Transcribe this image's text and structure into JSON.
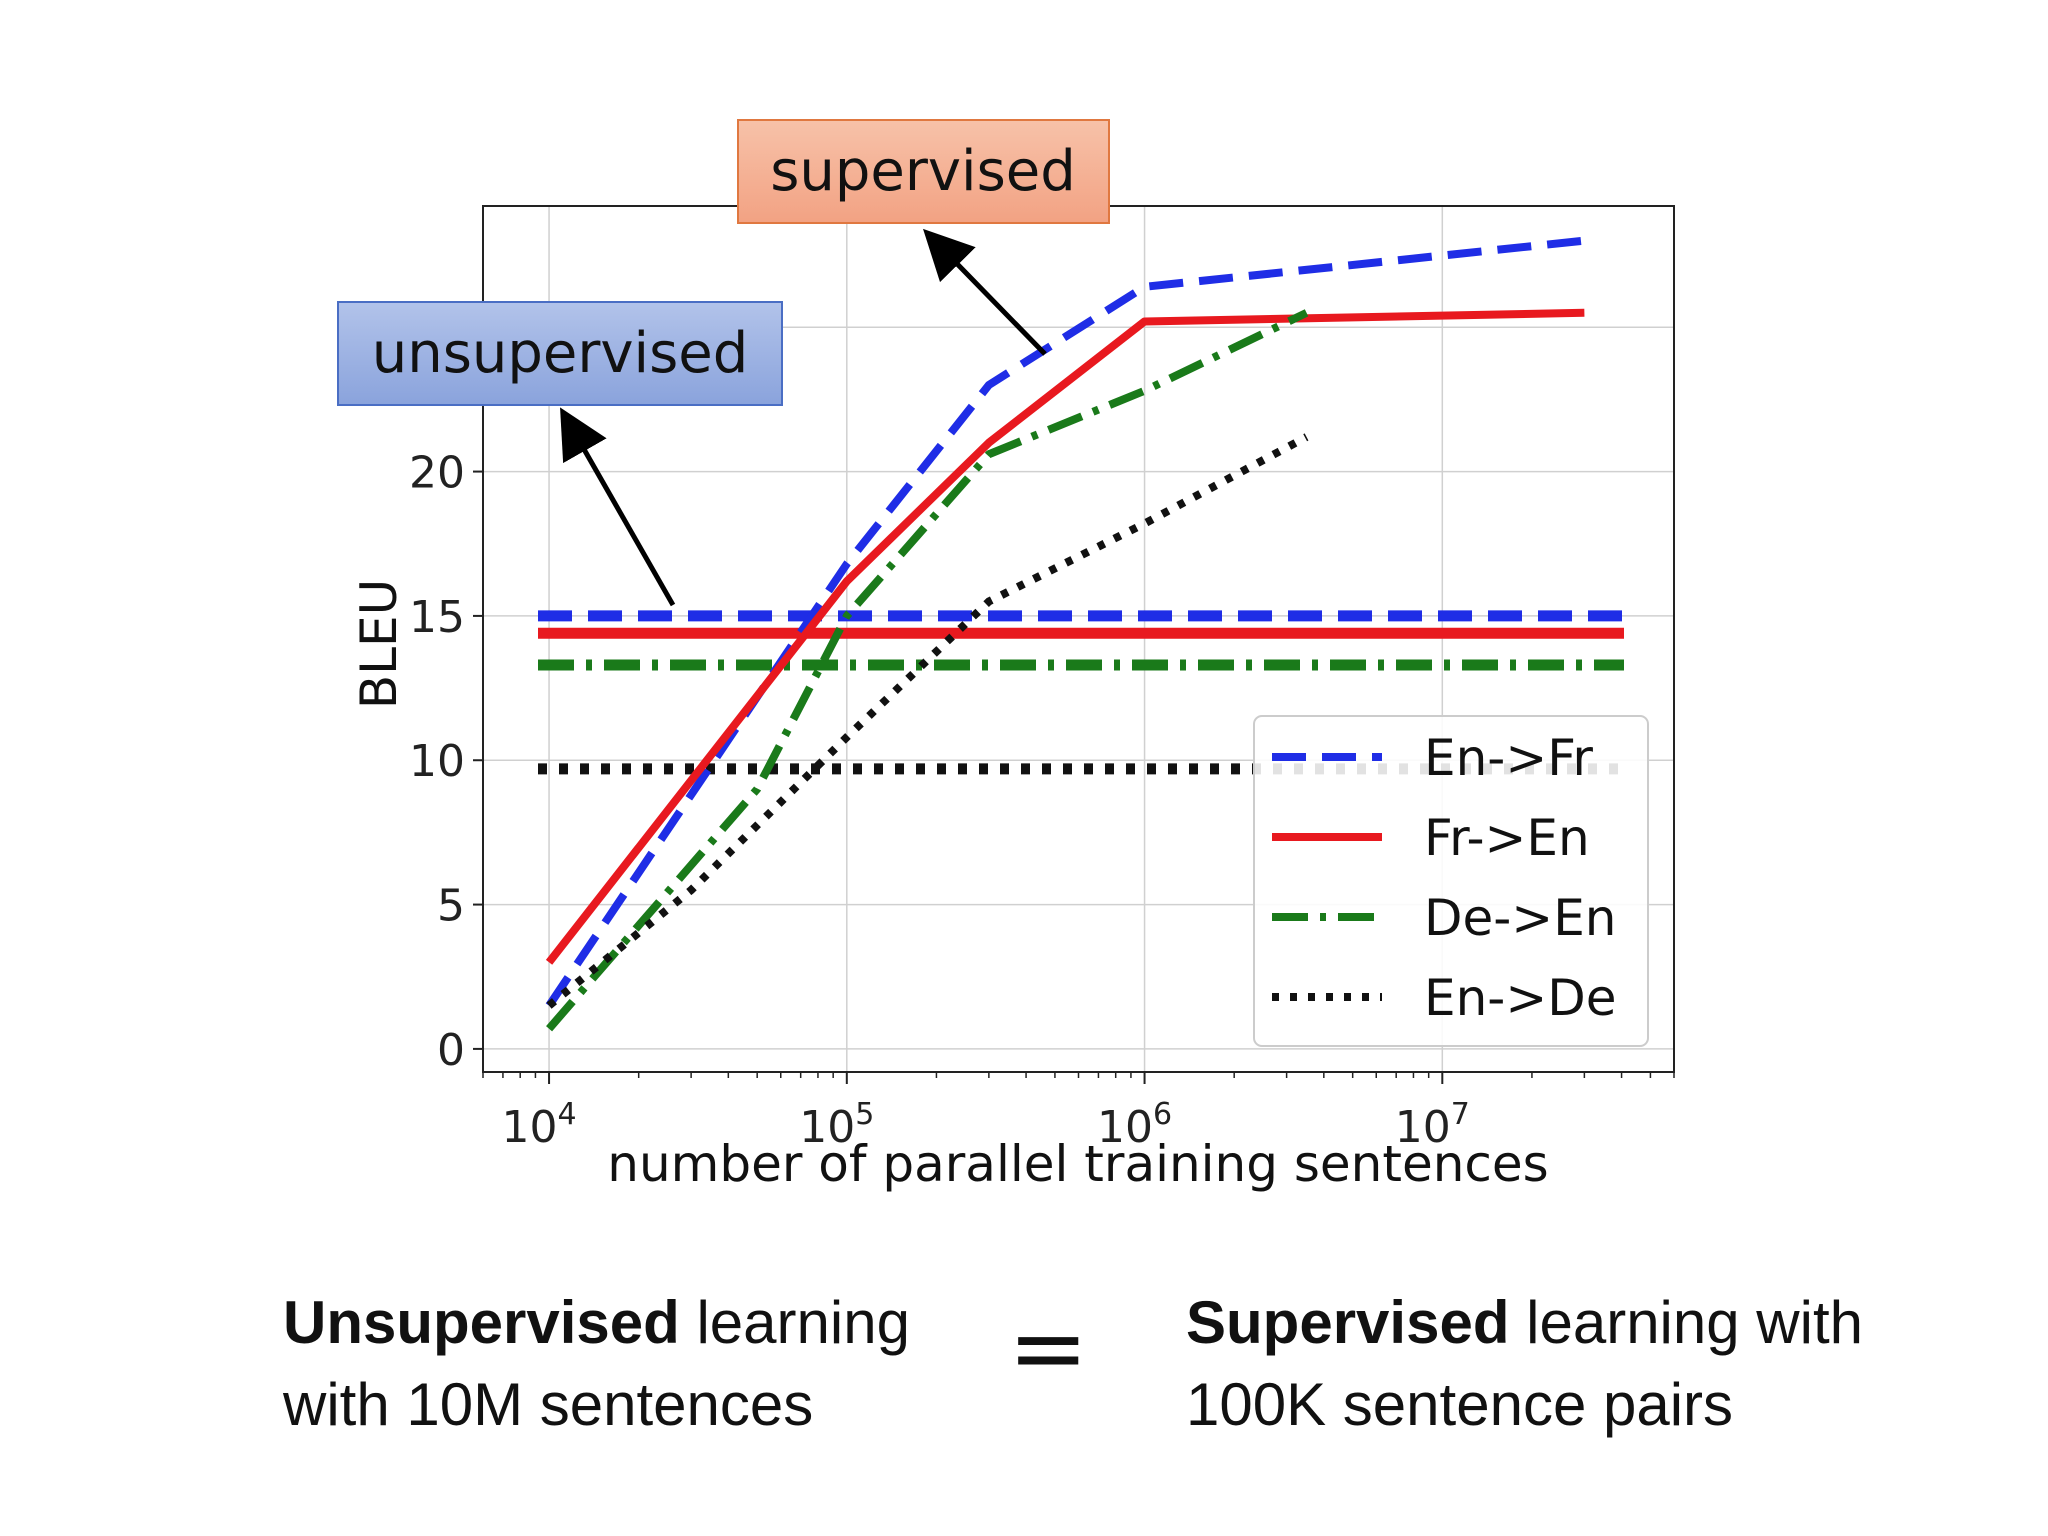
{
  "chart_data": {
    "type": "line",
    "xscale": "log",
    "xlabel": "number of parallel training sentences",
    "ylabel": "BLEU",
    "xlim": [
      6000,
      60000000
    ],
    "ylim": [
      -0.8,
      29.2
    ],
    "x_ticks": [
      {
        "value": 10000,
        "base": "10",
        "exp": "4"
      },
      {
        "value": 100000,
        "base": "10",
        "exp": "5"
      },
      {
        "value": 1000000,
        "base": "10",
        "exp": "6"
      },
      {
        "value": 10000000,
        "base": "10",
        "exp": "7"
      }
    ],
    "y_ticks": [
      0,
      5,
      10,
      15,
      20
    ],
    "grid": true,
    "legend_position": "lower-right",
    "series": [
      {
        "name": "En->Fr",
        "color": "#1f2de6",
        "style": "dashed",
        "x": [
          10000,
          100000,
          300000,
          1000000,
          30000000
        ],
        "y": [
          1.5,
          16.8,
          23.0,
          26.4,
          28.0
        ],
        "baseline": 15.0
      },
      {
        "name": "Fr->En",
        "color": "#e8191f",
        "style": "solid",
        "x": [
          10000,
          100000,
          300000,
          1000000,
          30000000
        ],
        "y": [
          3.0,
          16.2,
          21.0,
          25.2,
          25.5
        ],
        "baseline": 14.4
      },
      {
        "name": "De->En",
        "color": "#1a7a1a",
        "style": "dashdot",
        "x": [
          10000,
          50000,
          100000,
          300000,
          1000000,
          3500000
        ],
        "y": [
          0.7,
          9.0,
          15.0,
          20.6,
          22.8,
          25.5
        ],
        "baseline": 13.3
      },
      {
        "name": "En->De",
        "color": "#111111",
        "style": "dotted",
        "x": [
          10000,
          30000,
          100000,
          300000,
          1000000,
          3500000
        ],
        "y": [
          1.5,
          5.5,
          10.8,
          15.5,
          18.2,
          21.2
        ],
        "baseline": 9.7
      }
    ],
    "annotations": [
      {
        "text": "supervised",
        "fill": "#f4b095",
        "stroke": "#e07840"
      },
      {
        "text": "unsupervised",
        "fill": "#9db3e3",
        "stroke": "#4a6ec4"
      }
    ]
  },
  "caption": {
    "left_bold": "Unsupervised",
    "left_rest": " learning",
    "left_line2": "with 10M sentences",
    "equals": "=",
    "right_bold": "Supervised",
    "right_rest": " learning with",
    "right_line2": "100K sentence pairs"
  }
}
